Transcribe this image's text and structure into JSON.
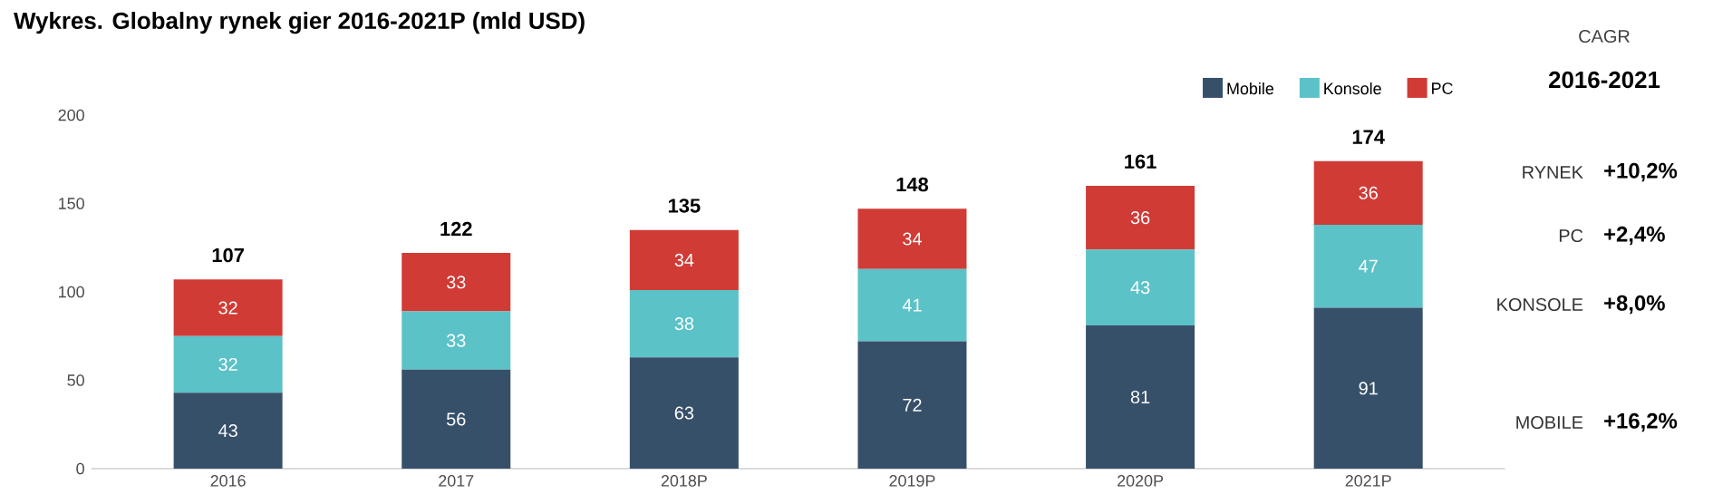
{
  "chart_data": {
    "type": "bar",
    "title": "Wykres. Globalny rynek gier 2016-2021P (mld USD)",
    "stacked": true,
    "categories": [
      "2016",
      "2017",
      "2018P",
      "2019P",
      "2020P",
      "2021P"
    ],
    "series": [
      {
        "name": "Mobile",
        "color": "#37506a",
        "values": [
          43,
          56,
          63,
          72,
          81,
          91
        ]
      },
      {
        "name": "Konsole",
        "color": "#5bc2c8",
        "values": [
          32,
          33,
          38,
          41,
          43,
          47
        ]
      },
      {
        "name": "PC",
        "color": "#d03b35",
        "values": [
          32,
          33,
          34,
          34,
          36,
          36
        ]
      }
    ],
    "totals": [
      "107",
      "122",
      "135",
      "148",
      "161",
      "174"
    ],
    "data_labels": true,
    "ylim": [
      0,
      200
    ],
    "yticks": [
      0,
      50,
      100,
      150,
      200
    ],
    "grid": false,
    "legend": "top right",
    "annotations": [
      "CAGR",
      "2016-2021",
      "RYNEK",
      "+10,2%",
      "PC",
      "+2,4%",
      "KONSOLE",
      "+8,0%",
      "MOBILE",
      "+16,2%"
    ]
  }
}
